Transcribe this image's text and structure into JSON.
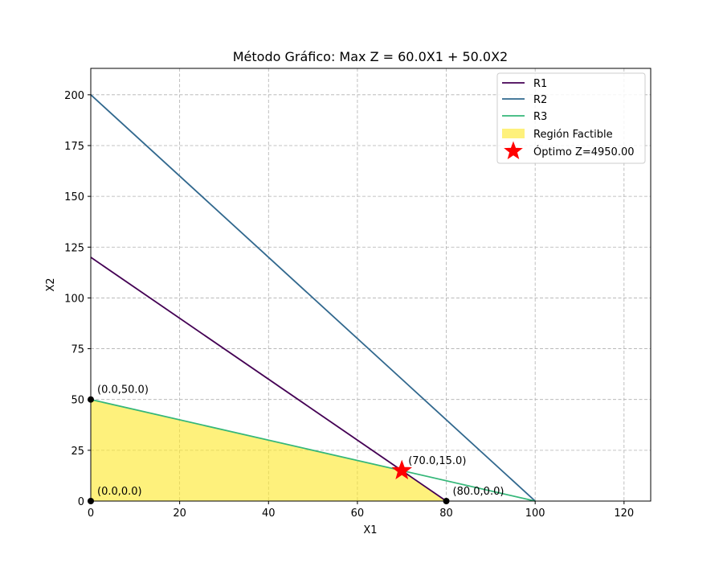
{
  "chart_data": {
    "type": "line",
    "title": "Método Gráfico: Max Z = 60.0X1 + 50.0X2",
    "xlabel": "X1",
    "ylabel": "X2",
    "xlim": [
      0,
      126
    ],
    "ylim": [
      0,
      213
    ],
    "xticks": [
      0,
      20,
      40,
      60,
      80,
      100,
      120
    ],
    "yticks": [
      0,
      25,
      50,
      75,
      100,
      125,
      150,
      175,
      200
    ],
    "grid": true,
    "legend_position": "upper right",
    "series": [
      {
        "name": "R1",
        "color": "#440154",
        "x": [
          0,
          80
        ],
        "y": [
          120,
          0
        ]
      },
      {
        "name": "R2",
        "color": "#31688e",
        "x": [
          0,
          100
        ],
        "y": [
          200,
          0
        ]
      },
      {
        "name": "R3",
        "color": "#35b779",
        "x": [
          0,
          100
        ],
        "y": [
          50,
          0
        ]
      }
    ],
    "feasible_region": {
      "name": "Región Factible",
      "color": "#fde725",
      "polygon": [
        [
          0,
          0
        ],
        [
          0,
          50
        ],
        [
          70,
          15
        ],
        [
          80,
          0
        ]
      ]
    },
    "vertices": [
      {
        "x": 0,
        "y": 50,
        "label": "(0.0,50.0)"
      },
      {
        "x": 0,
        "y": 0,
        "label": "(0.0,0.0)"
      },
      {
        "x": 80,
        "y": 0,
        "label": "(80.0,0.0)"
      },
      {
        "x": 70,
        "y": 15,
        "label": "(70.0,15.0)"
      }
    ],
    "optimum": {
      "name": "Óptimo Z=4950.00",
      "x": 70,
      "y": 15,
      "color": "#ff0000"
    }
  }
}
